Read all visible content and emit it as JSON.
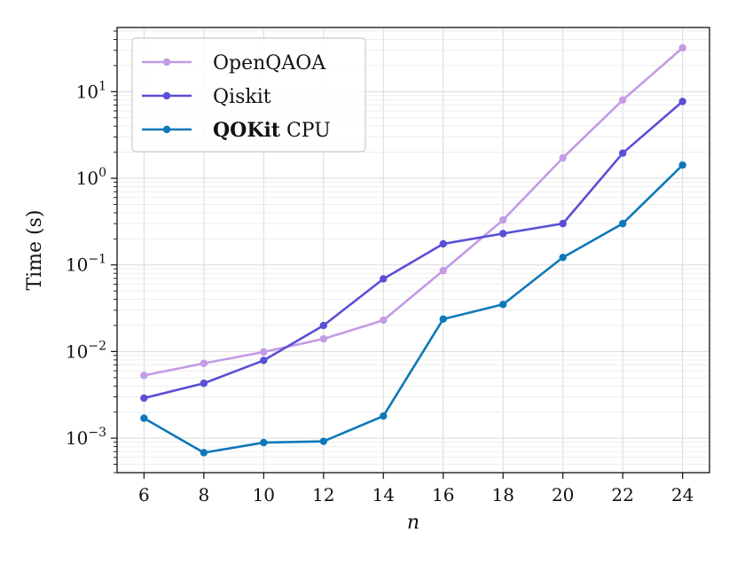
{
  "chart_data": {
    "type": "line",
    "title": "",
    "xlabel": "n",
    "ylabel": "Time (s)",
    "yscale": "log",
    "x": [
      6,
      8,
      10,
      12,
      14,
      16,
      18,
      20,
      22,
      24
    ],
    "xlim": [
      5.1,
      24.9
    ],
    "ylim": [
      0.0004,
      55
    ],
    "xticks": [
      6,
      8,
      10,
      12,
      14,
      16,
      18,
      20,
      22,
      24
    ],
    "yticks": [
      {
        "value": 0.001,
        "base": "10",
        "exp": "−3"
      },
      {
        "value": 0.01,
        "base": "10",
        "exp": "−2"
      },
      {
        "value": 0.1,
        "base": "10",
        "exp": "−1"
      },
      {
        "value": 1,
        "base": "10",
        "exp": "0"
      },
      {
        "value": 10,
        "base": "10",
        "exp": "1"
      }
    ],
    "grid": true,
    "legend_position": "top-left",
    "series": [
      {
        "name": "OpenQAOA",
        "name_bold": "",
        "color": "#c39be6",
        "values": [
          0.0053,
          0.0073,
          0.0099,
          0.014,
          0.023,
          0.086,
          0.33,
          1.72,
          8.0,
          32.0
        ]
      },
      {
        "name": "Qiskit",
        "name_bold": "",
        "color": "#5a4fd6",
        "values": [
          0.0029,
          0.0043,
          0.0079,
          0.02,
          0.069,
          0.175,
          0.23,
          0.3,
          1.95,
          7.7
        ]
      },
      {
        "name": " CPU",
        "name_bold": "QOKit",
        "color": "#0e78b8",
        "values": [
          0.0017,
          0.00068,
          0.00089,
          0.00092,
          0.0018,
          0.0237,
          0.035,
          0.122,
          0.3,
          1.42
        ]
      }
    ]
  }
}
